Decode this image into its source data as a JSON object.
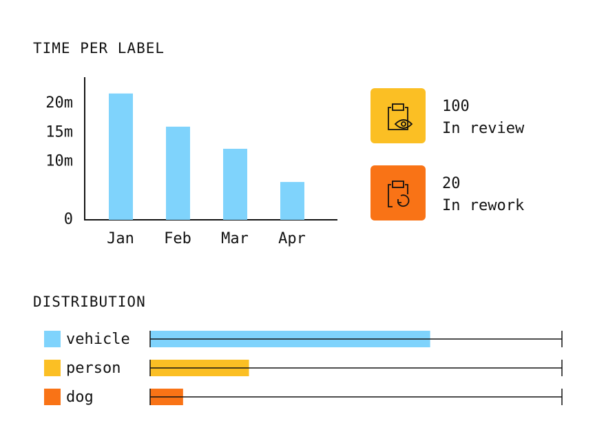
{
  "chart_data": [
    {
      "type": "bar",
      "title": "TIME PER LABEL",
      "categories": [
        "Jan",
        "Feb",
        "Mar",
        "Apr"
      ],
      "values": [
        21.7,
        16,
        12.2,
        6.5
      ],
      "color": "#7fd3fc",
      "ylim": [
        0,
        24.5
      ],
      "yticks": [
        0,
        {
          "value": 10,
          "label": "10m"
        },
        {
          "value": 15,
          "label": "15m"
        },
        {
          "value": 20,
          "label": "20m"
        }
      ]
    },
    {
      "type": "hbar",
      "title": "DISTRIBUTION",
      "categories": [
        "vehicle",
        "person",
        "dog"
      ],
      "values": [
        68,
        24,
        8
      ],
      "colors": [
        "#7fd3fc",
        "#fbbf24",
        "#f97316"
      ],
      "xlim": [
        0,
        100
      ]
    }
  ],
  "stats": [
    {
      "value": 100,
      "label": "In review"
    },
    {
      "value": 20,
      "label": "In rework"
    }
  ]
}
